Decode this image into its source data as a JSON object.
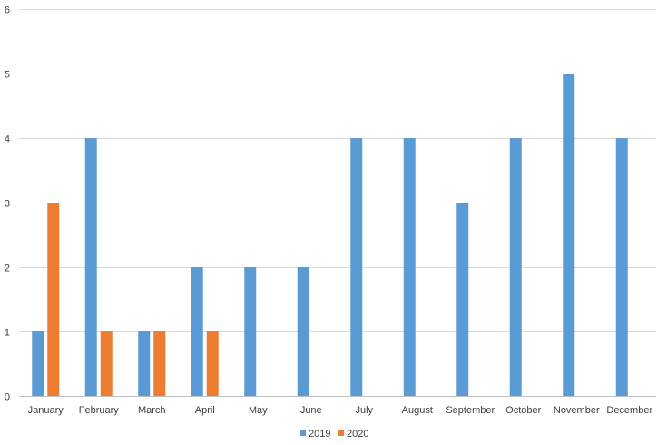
{
  "chart_data": {
    "type": "bar",
    "title": "",
    "xlabel": "",
    "ylabel": "",
    "categories": [
      "January",
      "February",
      "March",
      "April",
      "May",
      "June",
      "July",
      "August",
      "September",
      "October",
      "November",
      "December"
    ],
    "series": [
      {
        "name": "2019",
        "color": "#5B9BD5",
        "values": [
          1,
          4,
          1,
          2,
          2,
          2,
          4,
          4,
          3,
          4,
          5,
          4
        ]
      },
      {
        "name": "2020",
        "color": "#ED7D31",
        "values": [
          3,
          1,
          1,
          1,
          null,
          null,
          null,
          null,
          null,
          null,
          null,
          null
        ]
      }
    ],
    "ylim": [
      0,
      6
    ],
    "yticks": [
      "0",
      "1",
      "2",
      "3",
      "4",
      "5",
      "6"
    ],
    "grid": true,
    "legend": "bottom"
  }
}
